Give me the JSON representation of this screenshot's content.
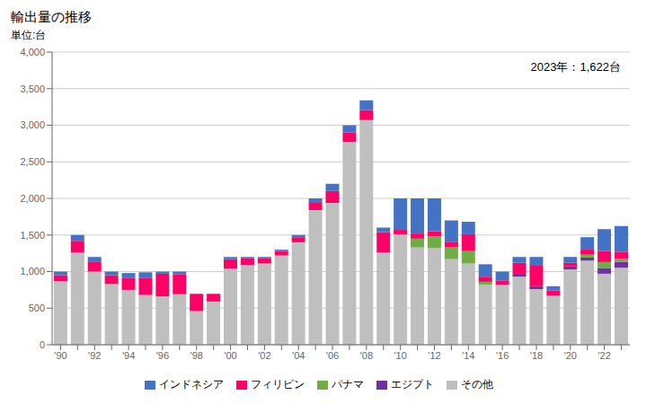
{
  "chart_data": {
    "type": "bar",
    "title": "輸出量の推移",
    "y_label": "単位:台",
    "annotation": "2023年：1,622台",
    "stacked": true,
    "grid": true,
    "legend": "bottom",
    "categories": [
      "'90",
      null,
      "'92",
      null,
      "'94",
      null,
      "'96",
      null,
      "'98",
      null,
      "'00",
      null,
      "'02",
      null,
      "'04",
      null,
      "'06",
      null,
      "'08",
      null,
      "'10",
      null,
      "'12",
      null,
      "'14",
      null,
      "'16",
      null,
      "'18",
      null,
      "'20",
      null,
      "'22",
      null
    ],
    "ylim": [
      0,
      4000
    ],
    "yticks": [
      0,
      500,
      {
        "value": 1000,
        "label": "1,000"
      },
      {
        "value": 1500,
        "label": "1,500"
      },
      {
        "value": 2000,
        "label": "2,000"
      },
      {
        "value": 2500,
        "label": "2,500"
      },
      {
        "value": 3000,
        "label": "3,000"
      },
      {
        "value": 3500,
        "label": "3,500"
      },
      {
        "value": 4000,
        "label": "4,000"
      }
    ],
    "series": [
      {
        "name": "インドネシア",
        "color": "#4472C4",
        "values": [
          50,
          80,
          70,
          50,
          70,
          80,
          30,
          40,
          10,
          10,
          30,
          20,
          20,
          20,
          30,
          60,
          100,
          100,
          130,
          60,
          430,
          480,
          450,
          300,
          170,
          170,
          120,
          80,
          120,
          60,
          80,
          170,
          300,
          350
        ]
      },
      {
        "name": "フィリピン",
        "color": "#FF0066",
        "values": [
          80,
          160,
          130,
          120,
          160,
          230,
          310,
          270,
          230,
          100,
          130,
          90,
          70,
          60,
          70,
          100,
          160,
          130,
          140,
          280,
          60,
          70,
          70,
          70,
          230,
          70,
          60,
          150,
          280,
          70,
          50,
          70,
          150,
          100
        ]
      },
      {
        "name": "パナマ",
        "color": "#70AD47",
        "values": [
          0,
          0,
          0,
          0,
          0,
          0,
          0,
          0,
          0,
          0,
          0,
          0,
          0,
          0,
          0,
          0,
          0,
          0,
          0,
          0,
          0,
          120,
          160,
          160,
          170,
          40,
          0,
          0,
          0,
          0,
          0,
          40,
          80,
          40
        ]
      },
      {
        "name": "エジプト",
        "color": "#7030A0",
        "values": [
          0,
          0,
          0,
          0,
          0,
          0,
          0,
          0,
          0,
          0,
          0,
          0,
          0,
          0,
          0,
          0,
          0,
          0,
          0,
          0,
          0,
          0,
          0,
          0,
          0,
          0,
          0,
          40,
          40,
          0,
          40,
          40,
          80,
          80
        ]
      },
      {
        "name": "その他",
        "color": "#BFBFBF",
        "values": [
          870,
          1260,
          1000,
          830,
          750,
          680,
          660,
          690,
          460,
          590,
          1040,
          1090,
          1110,
          1220,
          1400,
          1840,
          1940,
          2770,
          3070,
          1260,
          1510,
          1330,
          1320,
          1170,
          1110,
          820,
          820,
          930,
          760,
          670,
          1030,
          1150,
          970,
          1052
        ]
      }
    ]
  }
}
